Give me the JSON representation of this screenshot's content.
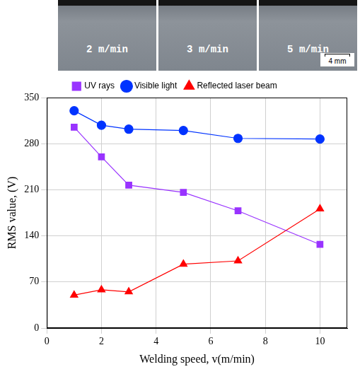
{
  "photos": {
    "labels": [
      "2 m/min",
      "3 m/min",
      "5 m/min"
    ],
    "scale_bar": "4 mm"
  },
  "chart_data": {
    "type": "line",
    "x_label": "Welding speed, v(m/min)",
    "y_label": "RMS value, (V)",
    "x": [
      1,
      2,
      3,
      5,
      7,
      10
    ],
    "series": [
      {
        "name": "UV rays",
        "color": "#9933ff",
        "marker": "square",
        "values": [
          305,
          260,
          217,
          206,
          178,
          127
        ]
      },
      {
        "name": "Visible light",
        "color": "#0033ff",
        "marker": "circle",
        "values": [
          330,
          308,
          302,
          300,
          288,
          287
        ]
      },
      {
        "name": "Reflected laser beam",
        "color": "#ff0000",
        "marker": "triangle",
        "values": [
          50,
          58,
          55,
          97,
          102,
          181
        ]
      }
    ],
    "xlim": [
      0,
      11
    ],
    "xticks": [
      0,
      2,
      4,
      6,
      8,
      10
    ],
    "ylim": [
      0,
      350
    ],
    "yticks": [
      0,
      70,
      140,
      210,
      280,
      350
    ],
    "grid": true,
    "legend": "top"
  }
}
